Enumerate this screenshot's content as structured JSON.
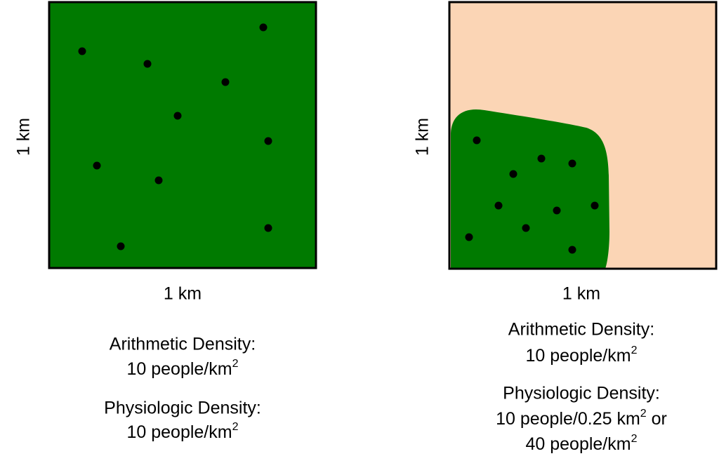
{
  "panels": [
    {
      "width_label": "1 km",
      "height_label": "1 km",
      "blocks": [
        {
          "heading": "Arithmetic Density:",
          "lines": [
            [
              {
                "text": "10 people/km"
              },
              {
                "text": "2",
                "sup": true
              }
            ]
          ]
        },
        {
          "heading": "Physiologic Density:",
          "lines": [
            [
              {
                "text": "10 people/km"
              },
              {
                "text": "2",
                "sup": true
              }
            ]
          ]
        }
      ]
    },
    {
      "width_label": "1 km",
      "height_label": "1 km",
      "blocks": [
        {
          "heading": "Arithmetic Density:",
          "lines": [
            [
              {
                "text": "10 people/km"
              },
              {
                "text": "2",
                "sup": true
              }
            ]
          ]
        },
        {
          "heading": "Physiologic Density:",
          "lines": [
            [
              {
                "text": "10 people/0.25 km"
              },
              {
                "text": "2",
                "sup": true
              },
              {
                "text": " or"
              }
            ],
            [
              {
                "text": "40 people/km"
              },
              {
                "text": "2",
                "sup": true
              }
            ]
          ]
        }
      ]
    }
  ]
}
